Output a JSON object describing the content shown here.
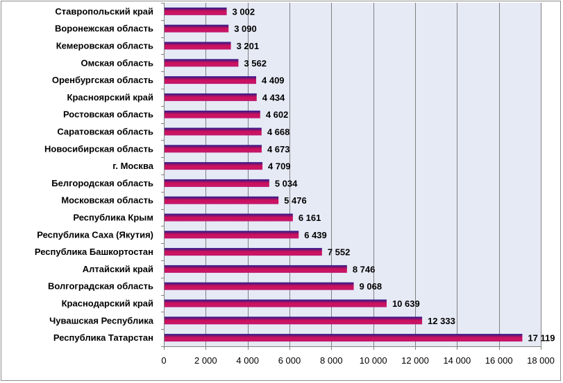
{
  "chart_data": {
    "type": "bar",
    "orientation": "horizontal",
    "categories": [
      "Ставропольский край",
      "Воронежская область",
      "Кемеровская область",
      "Омская область",
      "Оренбургская область",
      "Красноярский край",
      "Ростовская область",
      "Саратовская область",
      "Новосибирская область",
      "г. Москва",
      "Белгородская область",
      "Московская область",
      "Республика Крым",
      "Республика Саха (Якутия)",
      "Республика Башкортостан",
      "Алтайский край",
      "Волгоградская область",
      "Краснодарский край",
      "Чувашская Республика",
      "Республика Татарстан"
    ],
    "values": [
      3002,
      3090,
      3201,
      3562,
      4409,
      4434,
      4602,
      4668,
      4673,
      4709,
      5034,
      5476,
      6161,
      6439,
      7552,
      8746,
      9068,
      10639,
      12333,
      17119
    ],
    "value_labels": [
      "3 002",
      "3 090",
      "3 201",
      "3 562",
      "4 409",
      "4 434",
      "4 602",
      "4 668",
      "4 673",
      "4 709",
      "5 034",
      "5 476",
      "6 161",
      "6 439",
      "7 552",
      "8 746",
      "9 068",
      "10 639",
      "12 333",
      "17 119"
    ],
    "xlim": [
      0,
      18000
    ],
    "x_ticks": [
      0,
      2000,
      4000,
      6000,
      8000,
      10000,
      12000,
      14000,
      16000,
      18000
    ],
    "x_tick_labels": [
      "0",
      "2 000",
      "4 000",
      "6 000",
      "8 000",
      "10 000",
      "12 000",
      "14 000",
      "16 000",
      "18 000"
    ],
    "grid": true,
    "legend": "none",
    "title": "",
    "xlabel": "",
    "ylabel": "",
    "colors": {
      "bar_top": "#2a1a8c",
      "bar_mid": "#d0105a",
      "bar_bottom": "#c01870",
      "plot_bg": "#e6eaf5",
      "gridline": "#7f7f7f",
      "axis": "#7f7f7f"
    }
  }
}
